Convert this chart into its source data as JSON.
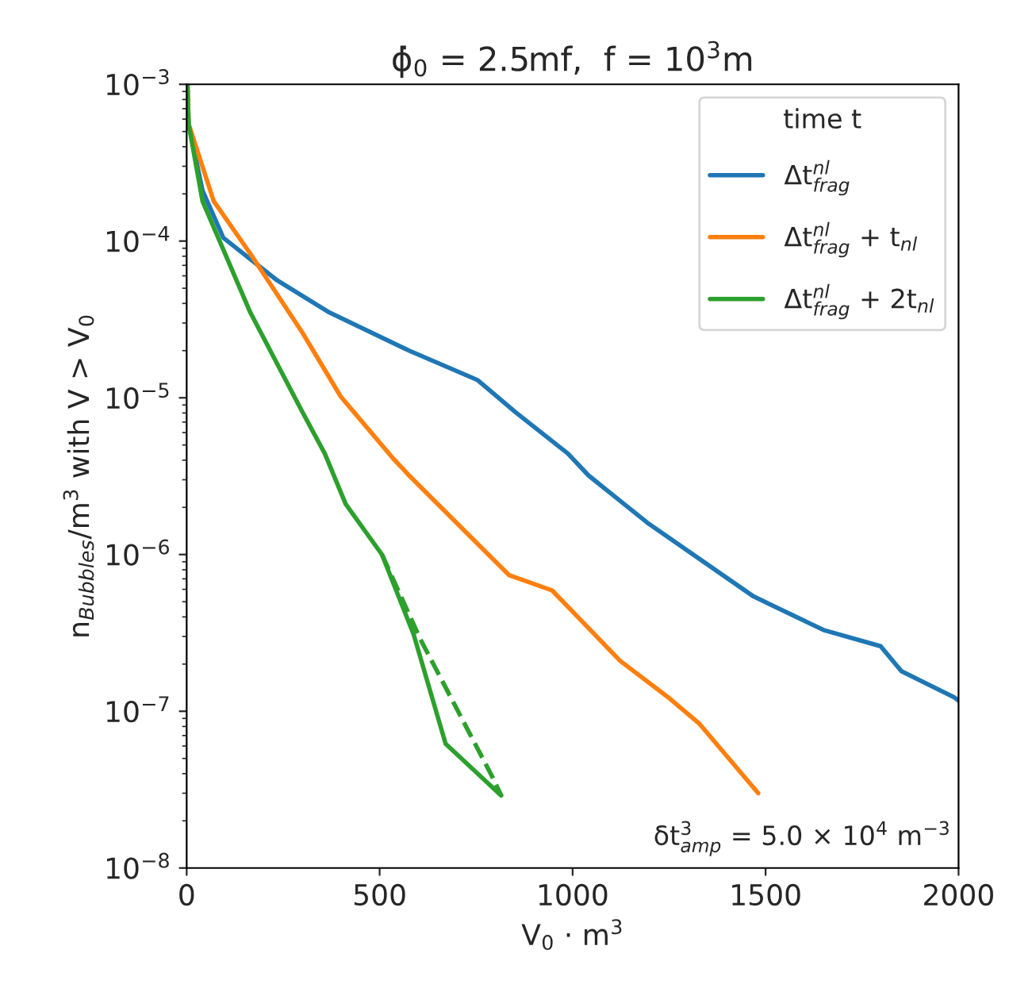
{
  "chart_data": {
    "type": "line",
    "title": "ϕ̇$_{0}$ = 2.5mf,  f = 10$^{3}$m",
    "xlabel": "V$_{0}$ · m$^{3}$",
    "ylabel": "n$_{Bubbles}$/m$^{3}$ with V > V$_{0}$",
    "legend_title": "time t",
    "legend": "top right",
    "log": "y",
    "grid": false,
    "xlim": [
      0,
      2000
    ],
    "xticks": [
      0,
      500,
      1000,
      1500,
      2000
    ],
    "ylim": [
      1e-08,
      0.001
    ],
    "yticks": [
      {
        "value": 1e-08,
        "label": "10$^{−8}$"
      },
      {
        "value": 1e-07,
        "label": "10$^{−7}$"
      },
      {
        "value": 1e-06,
        "label": "10$^{−6}$"
      },
      {
        "value": 1e-05,
        "label": "10$^{−5}$"
      },
      {
        "value": 0.0001,
        "label": "10$^{−4}$"
      },
      {
        "value": 0.001,
        "label": "10$^{−3}$"
      }
    ],
    "annotations": [
      "δt$^{3}$$_{amp}$ = 5.0 × 10$^{4}$ m$^{−3}$"
    ],
    "series": [
      {
        "name": "Δt$^{nl}$$_{frag}$",
        "color": "#1f77b4",
        "line_style": "solid",
        "x": [
          2,
          5,
          41,
          95,
          235,
          370,
          576,
          753,
          852,
          988,
          1041,
          1193,
          1469,
          1650,
          1798,
          1852,
          1988,
          2000
        ],
        "values": [
          0.001,
          0.00056,
          0.00021,
          0.000105,
          5.6e-05,
          3.5e-05,
          2e-05,
          1.3e-05,
          8.1e-06,
          4.4e-06,
          3.2e-06,
          1.6e-06,
          5.4e-07,
          3.3e-07,
          2.6e-07,
          1.8e-07,
          1.23e-07,
          1.17e-07
        ]
      },
      {
        "name": "Δt$^{nl}$$_{frag}$ + t$_{nl}$",
        "color": "#ff7f0e",
        "line_style": "solid",
        "x": [
          2,
          5,
          70,
          165,
          300,
          399,
          535,
          576,
          741,
          835,
          947,
          1123,
          1247,
          1329,
          1481
        ],
        "values": [
          0.001,
          0.00056,
          0.00018,
          8.3e-05,
          2.6e-05,
          1.02e-05,
          4.1e-06,
          3.2e-06,
          1.26e-06,
          7.4e-07,
          5.9e-07,
          2.1e-07,
          1.23e-07,
          8.3e-08,
          3e-08
        ]
      },
      {
        "name": "Δt$^{nl}$$_{frag}$ + 2t$_{nl}$",
        "color": "#2ca02c",
        "line_style": "solid",
        "x": [
          2,
          5,
          41,
          165,
          300,
          358,
          412,
          506,
          588,
          671,
          815
        ],
        "values": [
          0.001,
          0.00056,
          0.00018,
          3.5e-05,
          8.1e-06,
          4.4e-06,
          2.1e-06,
          1e-06,
          3.1e-07,
          6.2e-08,
          2.9e-08
        ]
      },
      {
        "color": "#2ca02c",
        "line_style": "dashed",
        "x": [
          506,
          605,
          790,
          815
        ],
        "values": [
          1e-06,
          2.9e-07,
          3.9e-08,
          2.9e-08
        ]
      }
    ]
  }
}
